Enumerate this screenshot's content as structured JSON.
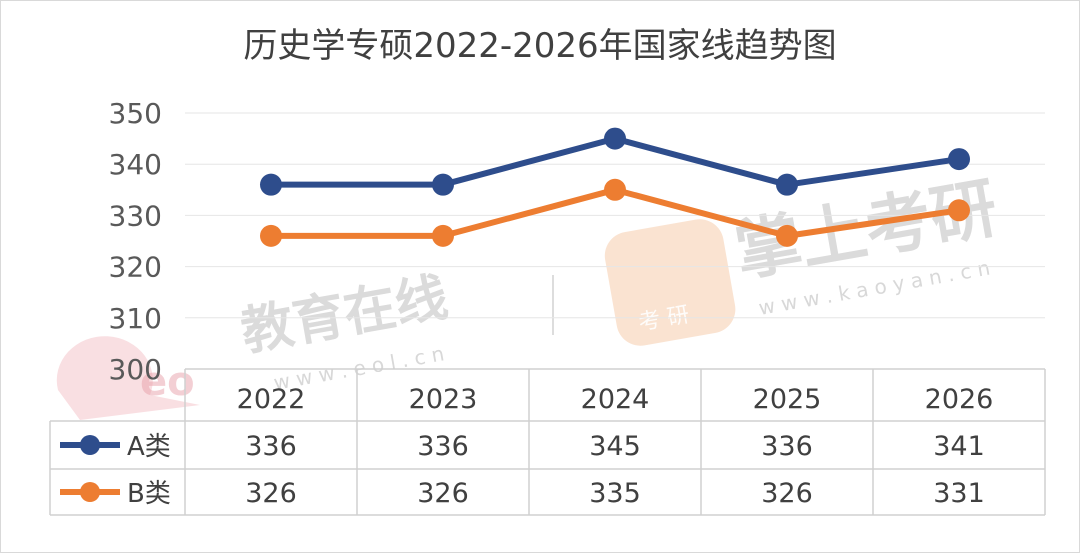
{
  "chart_data": {
    "type": "line",
    "title": "历史学专硕2022-2026年国家线趋势图",
    "categories": [
      "2022",
      "2023",
      "2024",
      "2025",
      "2026"
    ],
    "series": [
      {
        "name": "A类",
        "values": [
          336,
          336,
          345,
          336,
          341
        ],
        "color": "#2e4d8c"
      },
      {
        "name": "B类",
        "values": [
          326,
          326,
          335,
          326,
          331
        ],
        "color": "#ed7d31"
      }
    ],
    "ylim": [
      300,
      350
    ],
    "yticks": [
      "300",
      "310",
      "320",
      "330",
      "340",
      "350"
    ],
    "grid": true,
    "data_table": true
  },
  "watermarks": {
    "eol_text": "教育在线",
    "eol_url": "w w w . e o l . c n",
    "kaoyan_text": "掌上考研",
    "kaoyan_url": "w w w . k a o y a n . c n",
    "kaoyan_badge": "考 研"
  }
}
